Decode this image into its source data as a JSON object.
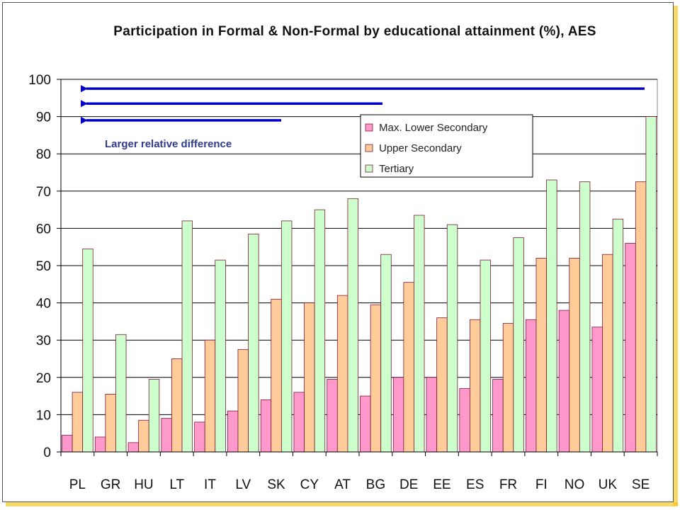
{
  "chart_data": {
    "type": "bar",
    "title": "Participation in Formal & Non-Formal by educational attainment (%), AES",
    "xlabel": "",
    "ylabel": "",
    "ylim": [
      0,
      100
    ],
    "yticks": [
      0,
      10,
      20,
      30,
      40,
      50,
      60,
      70,
      80,
      90,
      100
    ],
    "grid": true,
    "legend_position": "top-right-inside",
    "categories": [
      "PL",
      "GR",
      "HU",
      "LT",
      "IT",
      "LV",
      "SK",
      "CY",
      "AT",
      "BG",
      "DE",
      "EE",
      "ES",
      "FR",
      "FI",
      "NO",
      "UK",
      "SE"
    ],
    "series": [
      {
        "name": "Max. Lower Secondary",
        "color": "#ff99cc",
        "values": [
          4.5,
          4,
          2.5,
          9,
          8,
          11,
          14,
          16,
          19.5,
          15,
          20,
          20,
          17,
          19.5,
          35.5,
          38,
          33.5,
          56
        ]
      },
      {
        "name": "Upper Secondary",
        "color": "#ffcc99",
        "values": [
          16,
          15.5,
          8.5,
          25,
          30,
          27.5,
          41,
          40,
          42,
          39.5,
          45.5,
          36,
          35.5,
          34.5,
          52,
          52,
          53,
          72.5
        ]
      },
      {
        "name": "Tertiary",
        "color": "#ccffcc",
        "values": [
          54.5,
          31.5,
          19.5,
          62,
          51.5,
          58.5,
          62,
          65,
          68,
          53,
          63.5,
          61,
          51.5,
          57.5,
          73,
          72.5,
          62.5,
          90
        ]
      }
    ],
    "annotations": [
      {
        "text": "Larger relative difference",
        "color": "#2e3a8c"
      }
    ],
    "arrow_color": "#0000cc",
    "arrows": [
      {
        "level": 97.5
      },
      {
        "level": 93.5
      },
      {
        "level": 89
      }
    ]
  }
}
